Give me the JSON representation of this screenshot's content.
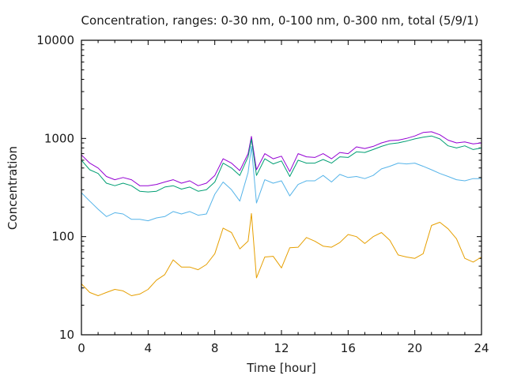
{
  "chart_data": {
    "type": "line",
    "title": "Concentration, ranges: 0-30 nm, 0-100 nm, 0-300 nm, total (5/9/1)",
    "xlabel": "Time [hour]",
    "ylabel": "Concentration",
    "xlim": [
      0,
      24
    ],
    "ylim": [
      10,
      10000
    ],
    "yscale": "log",
    "grid": false,
    "legend": "none",
    "xticks": [
      "0",
      "4",
      "8",
      "12",
      "16",
      "20",
      "24"
    ],
    "xtick_values": [
      0,
      4,
      8,
      12,
      16,
      20,
      24
    ],
    "yticks": [
      "10",
      "100",
      "1000",
      "10000"
    ],
    "ytick_values": [
      10,
      100,
      1000,
      10000
    ],
    "x": [
      0,
      0.5,
      1,
      1.5,
      2,
      2.5,
      3,
      3.5,
      4,
      4.5,
      5,
      5.5,
      6,
      6.5,
      7,
      7.5,
      8,
      8.5,
      9,
      9.5,
      10,
      10.2,
      10.5,
      11,
      11.5,
      12,
      12.5,
      13,
      13.5,
      14,
      14.5,
      15,
      15.5,
      16,
      16.5,
      17,
      17.5,
      18,
      18.5,
      19,
      19.5,
      20,
      20.5,
      21,
      21.5,
      22,
      22.5,
      23,
      23.5,
      24
    ],
    "series": [
      {
        "name": "total",
        "color": "#9400d3",
        "values": [
          680,
          560,
          500,
          410,
          380,
          400,
          380,
          330,
          330,
          340,
          360,
          380,
          350,
          370,
          330,
          350,
          420,
          620,
          560,
          470,
          700,
          1050,
          480,
          700,
          620,
          660,
          460,
          700,
          650,
          640,
          700,
          620,
          720,
          700,
          820,
          790,
          830,
          900,
          950,
          960,
          1000,
          1060,
          1150,
          1170,
          1090,
          960,
          900,
          920,
          880,
          900
        ]
      },
      {
        "name": "0-300 nm",
        "color": "#009e73",
        "values": [
          600,
          480,
          440,
          350,
          330,
          350,
          330,
          290,
          285,
          290,
          320,
          330,
          305,
          320,
          290,
          300,
          360,
          560,
          500,
          420,
          650,
          980,
          420,
          620,
          550,
          590,
          410,
          600,
          560,
          560,
          610,
          560,
          650,
          640,
          730,
          720,
          770,
          830,
          880,
          900,
          940,
          990,
          1030,
          1060,
          990,
          840,
          800,
          840,
          770,
          800
        ]
      },
      {
        "name": "0-100 nm",
        "color": "#56b4e9",
        "values": [
          280,
          230,
          190,
          160,
          175,
          170,
          150,
          150,
          145,
          155,
          160,
          180,
          170,
          180,
          165,
          170,
          270,
          360,
          300,
          230,
          450,
          830,
          220,
          380,
          350,
          370,
          260,
          340,
          370,
          370,
          420,
          360,
          430,
          400,
          410,
          390,
          420,
          490,
          520,
          560,
          550,
          560,
          520,
          480,
          440,
          410,
          380,
          370,
          390,
          390
        ]
      },
      {
        "name": "0-30 nm",
        "color": "#e69f00",
        "values": [
          33,
          27,
          25,
          27,
          29,
          28,
          25,
          26,
          29,
          36,
          41,
          58,
          49,
          49,
          46,
          52,
          67,
          122,
          110,
          75,
          90,
          172,
          38,
          62,
          63,
          48,
          77,
          78,
          98,
          90,
          80,
          78,
          87,
          105,
          100,
          85,
          100,
          110,
          92,
          65,
          62,
          60,
          67,
          130,
          140,
          120,
          95,
          60,
          55,
          62
        ]
      }
    ]
  }
}
